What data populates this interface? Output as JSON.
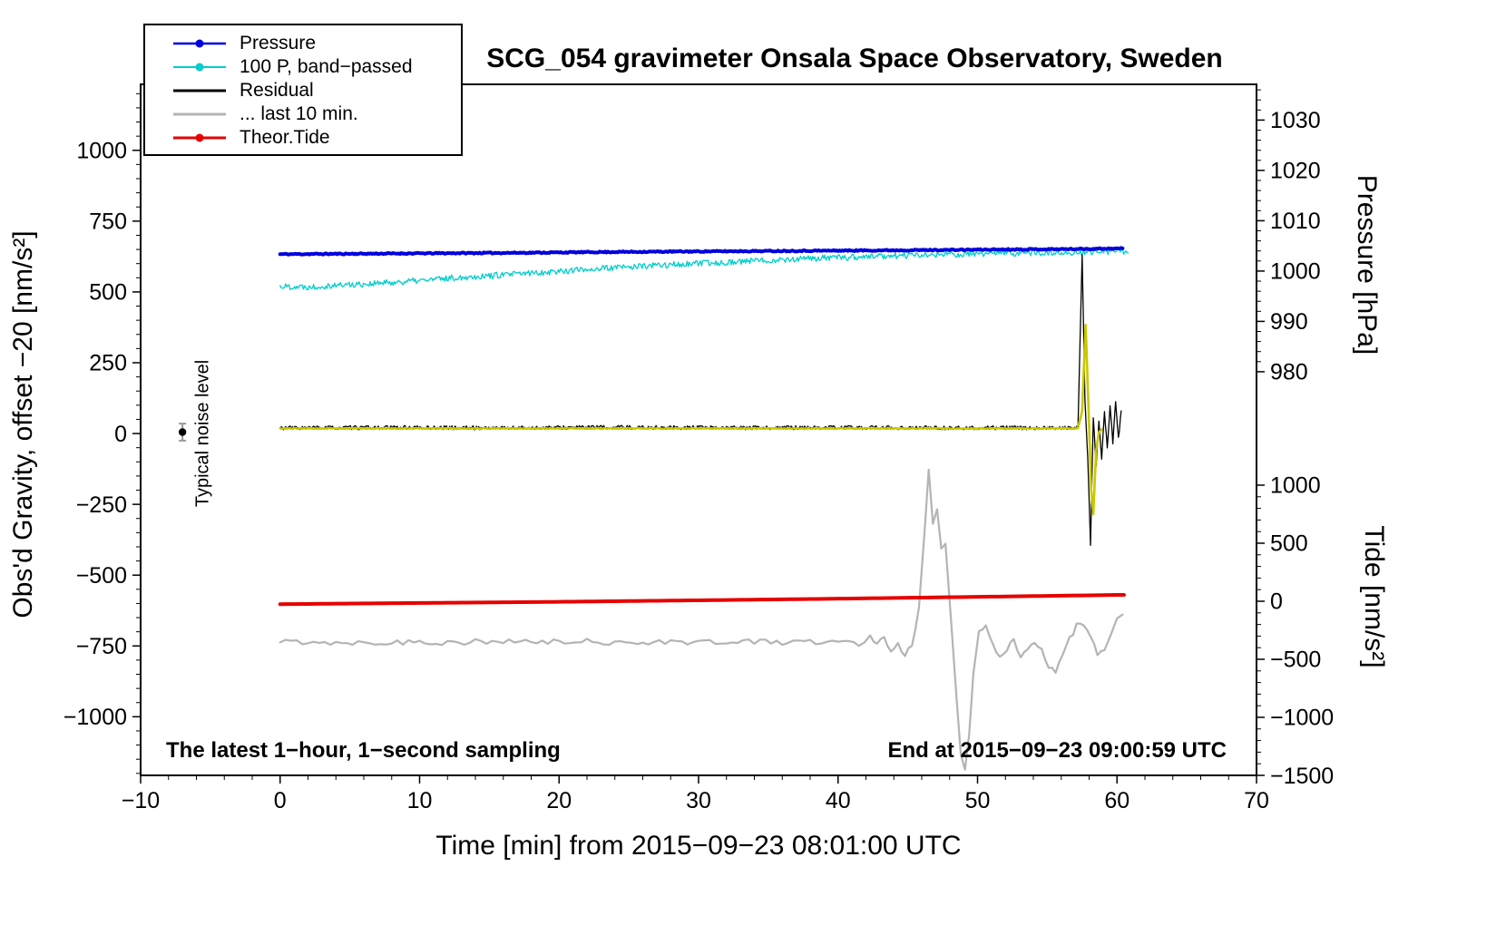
{
  "title": "SCG_054 gravimeter Onsala Space Observatory, Sweden",
  "xlabel": "Time [min] from 2015−09−23 08:01:00 UTC",
  "ylabel_left": "Obs'd Gravity, offset −20 [nm/s²]",
  "ylabel_right_top": "Pressure [hPa]",
  "ylabel_right_bottom": "Tide [nm/s²]",
  "annotations": {
    "noise_label": "Typical noise level",
    "footer_left": "The latest 1−hour, 1−second sampling",
    "footer_right": "End at 2015−09−23 09:00:59 UTC"
  },
  "legend": [
    {
      "label": "Pressure",
      "color": "#0000dd",
      "marker": true,
      "width": 2.5
    },
    {
      "label": "100 P, band−passed",
      "color": "#00cdcd",
      "marker": true,
      "width": 2
    },
    {
      "label": "Residual",
      "color": "#000000",
      "marker": false,
      "width": 3
    },
    {
      "label": "... last 10 min.",
      "color": "#b4b4b4",
      "marker": false,
      "width": 3
    },
    {
      "label": "Theor.Tide",
      "color": "#e60000",
      "marker": true,
      "width": 3
    }
  ],
  "chart_data": {
    "type": "line",
    "title": "SCG_054 gravimeter Onsala Space Observatory, Sweden",
    "xlabel": "Time [min] from 2015−09−23 08:01:00 UTC",
    "grid": false,
    "axes": {
      "x": {
        "min": -10,
        "max": 70,
        "majors": [
          -10,
          0,
          10,
          20,
          30,
          40,
          50,
          60,
          70
        ],
        "minor_step": 2
      },
      "gravity": {
        "min": -1207,
        "max": 1233,
        "majors": [
          -1000,
          -750,
          -500,
          -250,
          0,
          250,
          500,
          750,
          1000
        ],
        "minor_step": 50,
        "minor_min": -1200,
        "minor_max": 1200,
        "label": "Obs'd Gravity, offset −20 [nm/s²]"
      },
      "pressure": {
        "min": 899.8,
        "max": 1037.1,
        "majors": [
          980,
          990,
          1000,
          1010,
          1020,
          1030
        ],
        "minor_step": 2,
        "minor_min": 980,
        "minor_max": 1036,
        "label": "Pressure [hPa]"
      },
      "tide": {
        "min": -1500,
        "max": 4453,
        "majors": [
          -1500,
          -1000,
          -500,
          0,
          500,
          1000
        ],
        "minor_step": 100,
        "minor_min": -1500,
        "minor_max": 1000,
        "label": "Tide [nm/s²]"
      }
    },
    "noise_marker": {
      "x": -7,
      "y": 5,
      "error": 30,
      "dot_color": "#000000",
      "bar_color": "#999999"
    },
    "series": [
      {
        "name": "residual-last-10-min",
        "legend": "... last 10 min.",
        "axis": "tide",
        "color": "#b4b4b4",
        "width": 2.2,
        "noise": 25,
        "step": 0.4,
        "seed": 55,
        "points": [
          [
            0,
            -352
          ],
          [
            2,
            -348
          ],
          [
            4,
            -355
          ],
          [
            6,
            -350
          ],
          [
            8,
            -356
          ],
          [
            10,
            -350
          ],
          [
            12,
            -354
          ],
          [
            14,
            -349
          ],
          [
            16,
            -355
          ],
          [
            18,
            -351
          ],
          [
            20,
            -353
          ],
          [
            22,
            -348
          ],
          [
            24,
            -354
          ],
          [
            26,
            -350
          ],
          [
            28,
            -352
          ],
          [
            30,
            -349
          ],
          [
            32,
            -353
          ],
          [
            34,
            -350
          ],
          [
            36,
            -352
          ],
          [
            38,
            -350
          ],
          [
            40,
            -353
          ],
          [
            41.5,
            -362
          ],
          [
            42.3,
            -300
          ],
          [
            42.8,
            -380
          ],
          [
            43.3,
            -310
          ],
          [
            43.8,
            -420
          ],
          [
            44.3,
            -340
          ],
          [
            44.8,
            -480
          ],
          [
            45.3,
            -360
          ],
          [
            45.8,
            -80
          ],
          [
            46.2,
            600
          ],
          [
            46.5,
            1150
          ],
          [
            46.8,
            650
          ],
          [
            47.1,
            780
          ],
          [
            47.4,
            430
          ],
          [
            47.7,
            500
          ],
          [
            48.1,
            -150
          ],
          [
            48.5,
            -850
          ],
          [
            48.8,
            -1300
          ],
          [
            49.1,
            -1455
          ],
          [
            49.4,
            -1150
          ],
          [
            49.7,
            -650
          ],
          [
            50.1,
            -280
          ],
          [
            50.6,
            -220
          ],
          [
            51.1,
            -360
          ],
          [
            51.6,
            -500
          ],
          [
            52.1,
            -410
          ],
          [
            52.6,
            -340
          ],
          [
            53.1,
            -470
          ],
          [
            53.6,
            -390
          ],
          [
            54.1,
            -350
          ],
          [
            54.6,
            -430
          ],
          [
            55.1,
            -560
          ],
          [
            55.6,
            -610
          ],
          [
            56.1,
            -480
          ],
          [
            56.6,
            -330
          ],
          [
            57.1,
            -210
          ],
          [
            57.6,
            -185
          ],
          [
            58.1,
            -300
          ],
          [
            58.6,
            -450
          ],
          [
            59.1,
            -415
          ],
          [
            59.6,
            -270
          ],
          [
            60,
            -170
          ],
          [
            60.4,
            -115
          ]
        ]
      },
      {
        "name": "theoretical-tide",
        "legend": "Theor.Tide",
        "axis": "tide",
        "color": "#e60000",
        "width": 4,
        "noise": 0,
        "step": 0.5,
        "seed": 7,
        "points": [
          [
            0,
            -25
          ],
          [
            10,
            -15
          ],
          [
            20,
            -5
          ],
          [
            30,
            8
          ],
          [
            40,
            22
          ],
          [
            50,
            38
          ],
          [
            60.5,
            55
          ]
        ]
      },
      {
        "name": "pressure-band-passed",
        "legend": "100 P, band−passed",
        "axis": "gravity",
        "color": "#00cdcd",
        "width": 1.3,
        "noise": 11,
        "step": 0.08,
        "seed": 22,
        "points": [
          [
            0,
            520
          ],
          [
            2,
            518
          ],
          [
            4,
            524
          ],
          [
            7,
            530
          ],
          [
            10,
            540
          ],
          [
            13,
            552
          ],
          [
            16,
            560
          ],
          [
            19,
            570
          ],
          [
            22,
            580
          ],
          [
            25,
            588
          ],
          [
            28,
            596
          ],
          [
            31,
            602
          ],
          [
            34,
            610
          ],
          [
            37,
            616
          ],
          [
            40,
            621
          ],
          [
            43,
            626
          ],
          [
            46,
            630
          ],
          [
            49,
            633
          ],
          [
            52,
            636
          ],
          [
            55,
            639
          ],
          [
            58,
            641
          ],
          [
            60,
            643
          ],
          [
            60.8,
            637
          ]
        ]
      },
      {
        "name": "pressure",
        "legend": "Pressure",
        "axis": "pressure",
        "color": "#0000dd",
        "width": 4,
        "noise": 0.12,
        "step": 0.1,
        "seed": 11,
        "points": [
          [
            0,
            1003.35
          ],
          [
            6,
            1003.45
          ],
          [
            12,
            1003.55
          ],
          [
            18,
            1003.65
          ],
          [
            24,
            1003.8
          ],
          [
            30,
            1003.9
          ],
          [
            36,
            1004.0
          ],
          [
            42,
            1004.1
          ],
          [
            48,
            1004.2
          ],
          [
            52,
            1004.3
          ],
          [
            56,
            1004.35
          ],
          [
            60.4,
            1004.5
          ]
        ]
      },
      {
        "name": "residual",
        "legend": "Residual",
        "axis": "gravity",
        "color": "#000000",
        "width": 1.3,
        "noise": 7,
        "step": 0.08,
        "seed": 33,
        "points": [
          [
            0,
            20
          ],
          [
            8,
            21
          ],
          [
            16,
            20
          ],
          [
            24,
            22
          ],
          [
            32,
            20
          ],
          [
            40,
            21
          ],
          [
            48,
            20
          ],
          [
            54,
            20
          ],
          [
            57.2,
            20
          ],
          [
            57.5,
            630
          ],
          [
            57.7,
            120
          ],
          [
            57.9,
            -80
          ],
          [
            58.1,
            -395
          ],
          [
            58.3,
            60
          ],
          [
            58.5,
            -120
          ],
          [
            58.7,
            40
          ],
          [
            58.9,
            -90
          ],
          [
            59.1,
            75
          ],
          [
            59.3,
            -50
          ],
          [
            59.5,
            95
          ],
          [
            59.7,
            -30
          ],
          [
            59.9,
            110
          ],
          [
            60.1,
            -20
          ],
          [
            60.3,
            80
          ]
        ]
      },
      {
        "name": "residual-filtered",
        "legend": "",
        "axis": "gravity",
        "color": "#c8c800",
        "width": 2.6,
        "noise": 1.5,
        "step": 0.08,
        "seed": 44,
        "points": [
          [
            0,
            18
          ],
          [
            10,
            18
          ],
          [
            20,
            18
          ],
          [
            30,
            18
          ],
          [
            40,
            18
          ],
          [
            50,
            18
          ],
          [
            55,
            18
          ],
          [
            57.2,
            18
          ],
          [
            57.5,
            80
          ],
          [
            57.75,
            385
          ],
          [
            57.95,
            100
          ],
          [
            58.15,
            -200
          ],
          [
            58.3,
            -285
          ],
          [
            58.5,
            -60
          ],
          [
            58.7,
            5
          ],
          [
            58.9,
            15
          ]
        ]
      }
    ]
  }
}
